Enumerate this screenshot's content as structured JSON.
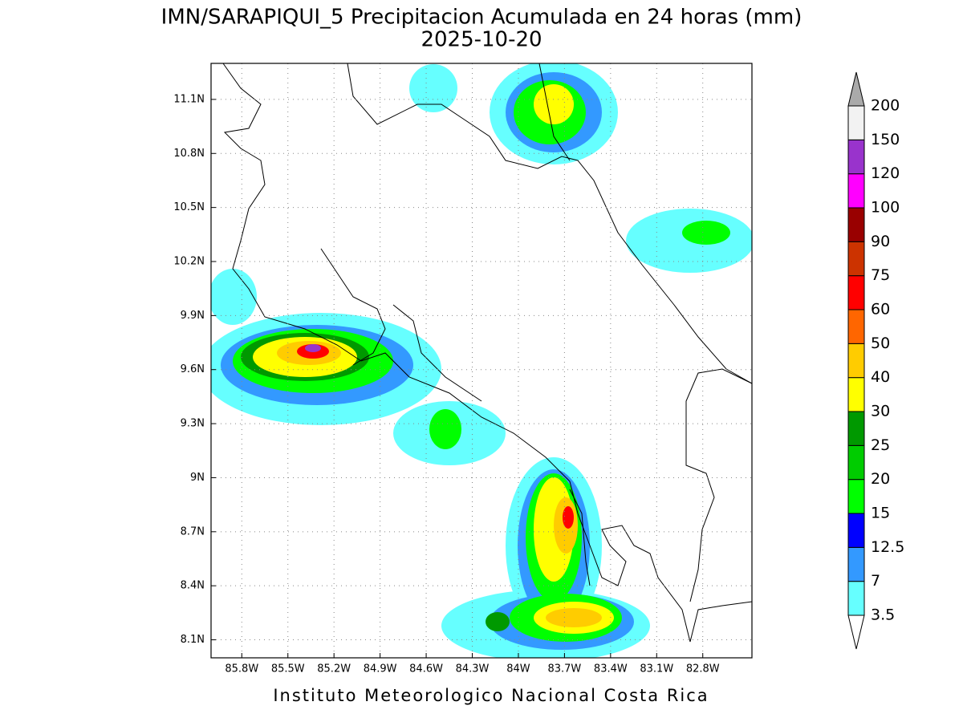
{
  "header": {
    "title": "IMN/SARAPIQUI_5 Precipitacion Acumulada en 24 horas (mm)",
    "date": "2025-10-20"
  },
  "map": {
    "lon_range": [
      -86.0,
      -82.48
    ],
    "lat_range": [
      8.0,
      11.3
    ],
    "grid": true,
    "lon_ticks": [
      {
        "value": -85.8,
        "label": "85.8W"
      },
      {
        "value": -85.5,
        "label": "85.5W"
      },
      {
        "value": -85.2,
        "label": "85.2W"
      },
      {
        "value": -84.9,
        "label": "84.9W"
      },
      {
        "value": -84.6,
        "label": "84.6W"
      },
      {
        "value": -84.3,
        "label": "84.3W"
      },
      {
        "value": -84.0,
        "label": "84W"
      },
      {
        "value": -83.7,
        "label": "83.7W"
      },
      {
        "value": -83.4,
        "label": "83.4W"
      },
      {
        "value": -83.1,
        "label": "83.1W"
      },
      {
        "value": -82.8,
        "label": "82.8W"
      }
    ],
    "lat_ticks": [
      {
        "value": 8.1,
        "label": "8.1N"
      },
      {
        "value": 8.4,
        "label": "8.4N"
      },
      {
        "value": 8.7,
        "label": "8.7N"
      },
      {
        "value": 9.0,
        "label": "9N"
      },
      {
        "value": 9.3,
        "label": "9.3N"
      },
      {
        "value": 9.6,
        "label": "9.6N"
      },
      {
        "value": 9.9,
        "label": "9.9N"
      },
      {
        "value": 10.2,
        "label": "10.2N"
      },
      {
        "value": 10.5,
        "label": "10.5N"
      },
      {
        "value": 10.8,
        "label": "10.8N"
      },
      {
        "value": 11.1,
        "label": "11.1N"
      }
    ]
  },
  "colorbar": {
    "levels": [
      3.5,
      7,
      12.5,
      15,
      20,
      25,
      30,
      40,
      50,
      60,
      75,
      90,
      100,
      120,
      150,
      200
    ],
    "colors": [
      "#66ffff",
      "#3399ff",
      "#0000ff",
      "#00ff00",
      "#00cc00",
      "#009900",
      "#ffff00",
      "#ffcc00",
      "#ff6600",
      "#ff0000",
      "#cc3300",
      "#990000",
      "#ff00ff",
      "#9933cc",
      "#f2f2f2"
    ],
    "under_color": "#ffffff",
    "over_color": "#aaaaaa"
  },
  "footer": "Instituto Meteorologico Nacional Costa Rica"
}
